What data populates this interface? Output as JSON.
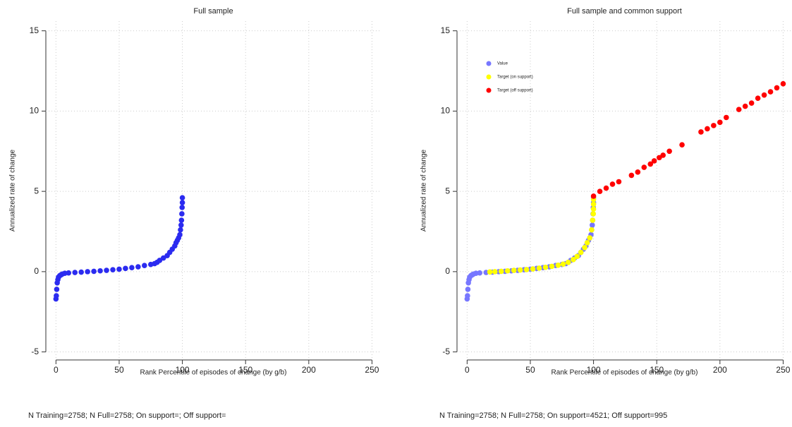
{
  "chart_data": [
    {
      "type": "scatter",
      "title": "Full sample",
      "x_label": "Rank Percentile of episodes of change (by g/b)",
      "y_label": "Annualized rate of change",
      "footnote": "N Training=2758; N Full=2758; On support=; Off support=",
      "xlim": [
        -8,
        257
      ],
      "ylim": [
        -5.5,
        15.6
      ],
      "xticks": [
        0,
        50,
        100,
        150,
        200,
        250
      ],
      "yticks": [
        -5,
        0,
        5,
        10,
        15
      ],
      "grid": true,
      "series": [
        {
          "name": "Value",
          "color": "#2b2bf0",
          "x": [
            0,
            0.3,
            0.6,
            1,
            1.5,
            2,
            3,
            4,
            5,
            7,
            10,
            15,
            20,
            25,
            30,
            35,
            40,
            45,
            50,
            55,
            60,
            65,
            70,
            75,
            78,
            80,
            82,
            85,
            88,
            90,
            92,
            94,
            95,
            96,
            97,
            98,
            98.5,
            99,
            99.3,
            99.6,
            99.8,
            100,
            100
          ],
          "values": [
            -1.7,
            -1.5,
            -1.1,
            -0.7,
            -0.5,
            -0.35,
            -0.25,
            -0.2,
            -0.15,
            -0.1,
            -0.08,
            -0.05,
            -0.03,
            0,
            0.02,
            0.05,
            0.08,
            0.12,
            0.15,
            0.2,
            0.25,
            0.3,
            0.38,
            0.45,
            0.5,
            0.58,
            0.7,
            0.85,
            1.0,
            1.2,
            1.4,
            1.6,
            1.8,
            1.95,
            2.1,
            2.3,
            2.6,
            2.9,
            3.2,
            3.6,
            4.0,
            4.3,
            4.6
          ]
        }
      ]
    },
    {
      "type": "scatter",
      "title": "Full sample and common support",
      "x_label": "Rank Percentile of episodes of change (by g/b)",
      "y_label": "Annualized rate of change",
      "footnote": "N Training=2758; N Full=2758; On support=4521; Off support=995",
      "xlim": [
        -8,
        257
      ],
      "ylim": [
        -5.5,
        15.6
      ],
      "xticks": [
        0,
        50,
        100,
        150,
        200,
        250
      ],
      "yticks": [
        -5,
        0,
        5,
        10,
        15
      ],
      "grid": true,
      "legend": "top-left",
      "series": [
        {
          "name": "Value",
          "color": "#7777ff",
          "x": [
            0,
            0.3,
            0.6,
            1,
            1.5,
            2,
            3,
            4,
            5,
            7,
            10,
            15,
            20,
            25,
            30,
            35,
            40,
            45,
            50,
            55,
            60,
            65,
            70,
            75,
            78,
            80,
            82,
            85,
            88,
            90,
            92,
            94,
            95,
            96,
            97,
            98,
            98.5,
            99,
            99.3,
            99.6,
            99.8,
            100,
            100
          ],
          "values": [
            -1.7,
            -1.5,
            -1.1,
            -0.7,
            -0.5,
            -0.35,
            -0.25,
            -0.2,
            -0.15,
            -0.1,
            -0.08,
            -0.05,
            -0.03,
            0,
            0.02,
            0.05,
            0.08,
            0.12,
            0.15,
            0.2,
            0.25,
            0.3,
            0.38,
            0.45,
            0.5,
            0.58,
            0.7,
            0.85,
            1.0,
            1.2,
            1.4,
            1.6,
            1.8,
            1.95,
            2.1,
            2.3,
            2.6,
            2.9,
            3.2,
            3.6,
            4.0,
            4.3,
            4.6
          ]
        },
        {
          "name": "Target (on support)",
          "color": "#ffff00",
          "x": [
            18,
            22,
            27,
            32,
            37,
            42,
            47,
            52,
            57,
            62,
            67,
            72,
            76,
            80,
            84,
            87,
            90,
            93,
            95,
            97,
            98.5,
            99.3,
            99.8,
            100,
            100,
            100
          ],
          "values": [
            -0.02,
            0,
            0.02,
            0.05,
            0.08,
            0.1,
            0.13,
            0.17,
            0.22,
            0.27,
            0.33,
            0.4,
            0.47,
            0.58,
            0.75,
            0.95,
            1.2,
            1.5,
            1.8,
            2.1,
            2.6,
            3.2,
            3.6,
            3.9,
            4.2,
            4.5
          ]
        },
        {
          "name": "Target (off support)",
          "color": "#ff0000",
          "x": [
            100,
            105,
            110,
            115,
            120,
            130,
            135,
            140,
            145,
            148,
            152,
            155,
            160,
            170,
            185,
            190,
            195,
            200,
            205,
            215,
            220,
            225,
            230,
            235,
            240,
            245,
            250
          ],
          "values": [
            4.7,
            5.0,
            5.2,
            5.45,
            5.6,
            6.0,
            6.2,
            6.5,
            6.7,
            6.9,
            7.1,
            7.25,
            7.5,
            7.9,
            8.7,
            8.9,
            9.1,
            9.3,
            9.6,
            10.1,
            10.3,
            10.5,
            10.8,
            11.0,
            11.2,
            11.45,
            11.7
          ]
        }
      ]
    }
  ]
}
